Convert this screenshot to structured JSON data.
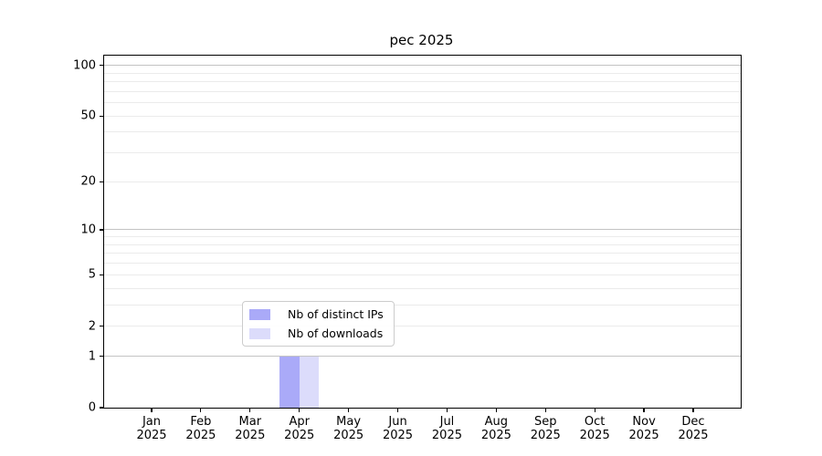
{
  "title": "pec 2025",
  "legend": {
    "items": [
      {
        "label": "Nb of distinct IPs",
        "color": "#aaaaf8"
      },
      {
        "label": "Nb of downloads",
        "color": "#dcdcfb"
      }
    ]
  },
  "chart_data": {
    "type": "bar",
    "title": "pec 2025",
    "categories": [
      "Jan",
      "Feb",
      "Mar",
      "Apr",
      "May",
      "Jun",
      "Jul",
      "Aug",
      "Sep",
      "Oct",
      "Nov",
      "Dec"
    ],
    "year_label": "2025",
    "series": [
      {
        "name": "Nb of distinct IPs",
        "color": "#aaaaf8",
        "values": [
          0,
          0,
          0,
          1,
          0,
          0,
          0,
          0,
          0,
          0,
          0,
          0
        ]
      },
      {
        "name": "Nb of downloads",
        "color": "#dcdcfb",
        "values": [
          0,
          0,
          0,
          1,
          0,
          0,
          0,
          0,
          0,
          0,
          0,
          0
        ]
      }
    ],
    "y_scale": "log10(1+y)",
    "y_tick_values": [
      0,
      1,
      2,
      5,
      10,
      20,
      50,
      100
    ],
    "y_major_gridlines": [
      1,
      10,
      100
    ],
    "y_minor_gridlines": [
      2,
      3,
      4,
      5,
      6,
      7,
      8,
      9,
      20,
      30,
      40,
      50,
      60,
      70,
      80,
      90
    ],
    "ylim": [
      0,
      114
    ],
    "grid": "horizontal",
    "legend_position": "lower center",
    "colors": {
      "major_grid": "#c3c3c3",
      "minor_grid": "#ebebeb",
      "axis": "#000000",
      "background": "#ffffff",
      "text": "#000000"
    }
  }
}
